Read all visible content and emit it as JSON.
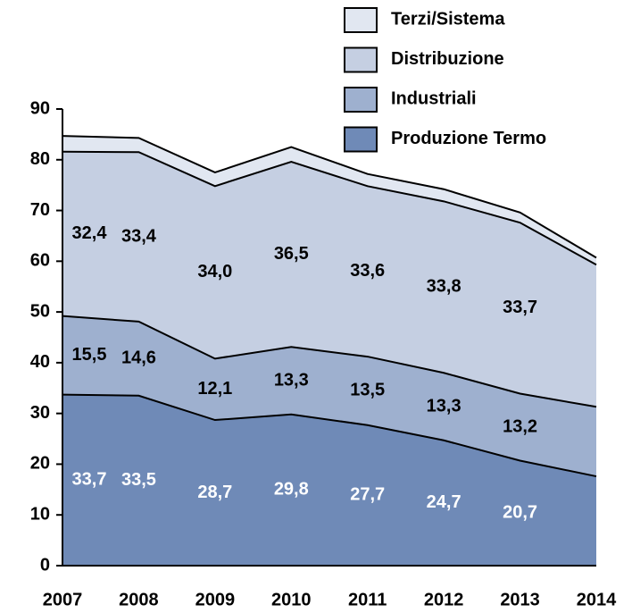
{
  "chart_data": {
    "type": "stacked_area",
    "categories": [
      "2007",
      "2008",
      "2009",
      "2010",
      "2011",
      "2012",
      "2013",
      "2014"
    ],
    "series": [
      {
        "name": "Produzione Termo",
        "color": "#6f8ab7",
        "label_color": "#ffffff",
        "values": [
          33.7,
          33.5,
          28.7,
          29.8,
          27.7,
          24.7,
          20.7,
          17.6
        ],
        "value_labels": [
          "33,7",
          "33,5",
          "28,7",
          "29,8",
          "27,7",
          "24,7",
          "20,7",
          null
        ]
      },
      {
        "name": "Industriali",
        "color": "#9eb0cf",
        "label_color": "#000000",
        "values": [
          15.5,
          14.6,
          12.1,
          13.3,
          13.5,
          13.3,
          13.2,
          13.7
        ],
        "value_labels": [
          "15,5",
          "14,6",
          "12,1",
          "13,3",
          "13,5",
          "13,3",
          "13,2",
          null
        ]
      },
      {
        "name": "Distribuzione",
        "color": "#c5cfe2",
        "label_color": "#000000",
        "values": [
          32.4,
          33.4,
          34.0,
          36.5,
          33.6,
          33.8,
          33.7,
          28.0
        ],
        "value_labels": [
          "32,4",
          "33,4",
          "34,0",
          "36,5",
          "33,6",
          "33,8",
          "33,7",
          null
        ]
      },
      {
        "name": "Terzi/Sistema",
        "color": "#e1e7f1",
        "label_color": "#000000",
        "values": [
          3.1,
          2.8,
          2.7,
          2.9,
          2.4,
          2.4,
          2.0,
          1.4
        ],
        "value_labels": [
          null,
          null,
          null,
          null,
          null,
          null,
          null,
          null
        ]
      }
    ],
    "ylim": [
      0,
      90
    ],
    "yticks": [
      0,
      10,
      20,
      30,
      40,
      50,
      60,
      70,
      80,
      90
    ],
    "legend": "top-right"
  }
}
